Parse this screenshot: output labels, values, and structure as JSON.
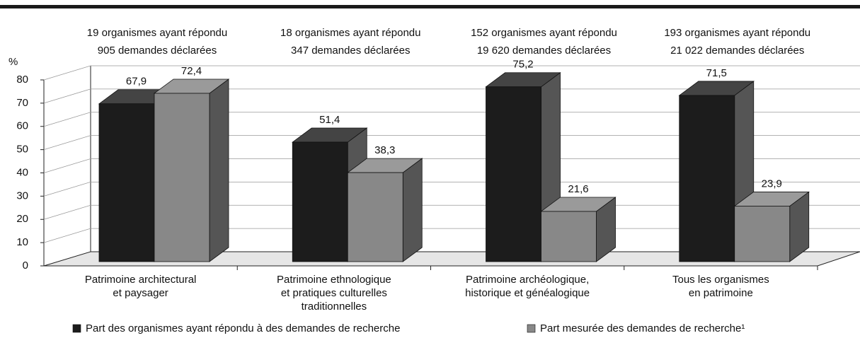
{
  "chart_data": {
    "type": "bar3d",
    "y_label": "%",
    "categories": [
      [
        "Patrimoine architectural",
        "et paysager"
      ],
      [
        "Patrimoine ethnologique",
        "et pratiques culturelles",
        "traditionnelles"
      ],
      [
        "Patrimoine archéologique,",
        "historique et généalogique"
      ],
      [
        "Tous les organismes",
        "en patrimoine"
      ]
    ],
    "group_labels": [
      [
        "19 organismes ayant répondu",
        "905 demandes déclarées"
      ],
      [
        "18 organismes ayant répondu",
        "347 demandes déclarées"
      ],
      [
        "152 organismes ayant répondu",
        "19 620 demandes déclarées"
      ],
      [
        "193 organismes ayant répondu",
        "21 022 demandes déclarées"
      ]
    ],
    "series": [
      {
        "name": "Part des organismes ayant répondu à des demandes de recherche",
        "color": "#1c1c1c",
        "values": [
          67.9,
          51.4,
          75.2,
          71.5
        ],
        "value_labels": [
          "67,9",
          "51,4",
          "75,2",
          "71,5"
        ]
      },
      {
        "name": "Part mesurée des demandes de recherche¹",
        "color": "#888888",
        "values": [
          72.4,
          38.3,
          21.6,
          23.9
        ],
        "value_labels": [
          "72,4",
          "38,3",
          "21,6",
          "23,9"
        ]
      }
    ],
    "ylim": [
      0,
      80
    ],
    "yticks": [
      0,
      10,
      20,
      30,
      40,
      50,
      60,
      70,
      80
    ],
    "grid": true
  }
}
